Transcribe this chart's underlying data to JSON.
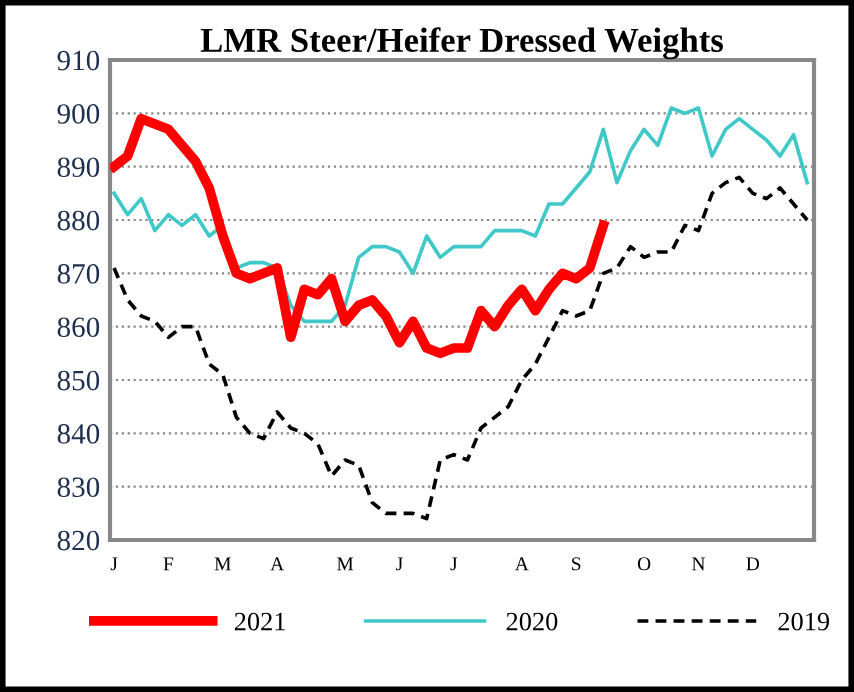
{
  "chart_data": {
    "type": "line",
    "title": "LMR Steer/Heifer Dressed Weights",
    "categories": [
      "J",
      null,
      null,
      null,
      "F",
      null,
      null,
      null,
      "M",
      null,
      null,
      null,
      "A",
      null,
      null,
      null,
      null,
      "M",
      null,
      null,
      null,
      "J",
      null,
      null,
      null,
      "J",
      null,
      null,
      null,
      null,
      "A",
      null,
      null,
      null,
      "S",
      null,
      null,
      null,
      null,
      "O",
      null,
      null,
      null,
      "N",
      null,
      null,
      null,
      "D",
      null,
      null,
      null,
      null
    ],
    "ylim": [
      820,
      910
    ],
    "yticks": [
      820,
      830,
      840,
      850,
      860,
      870,
      880,
      890,
      900,
      910
    ],
    "grid": "y",
    "legend": "bottom",
    "marker": "none",
    "series": [
      {
        "name": "2021",
        "color": "#ff0000",
        "line_style": "solid",
        "values": [
          890,
          892,
          899,
          898,
          897,
          894,
          891,
          886,
          877,
          870,
          869,
          870,
          871,
          858,
          867,
          866,
          869,
          861,
          864,
          865,
          862,
          857,
          861,
          856,
          855,
          856,
          856,
          863,
          860,
          864,
          867,
          863,
          867,
          870,
          869,
          871,
          879,
          null,
          null,
          null,
          null,
          null,
          null,
          null,
          null,
          null,
          null,
          null,
          null,
          null,
          null,
          null
        ]
      },
      {
        "name": "2020",
        "color": "#40c8c8",
        "line_style": "solid",
        "values": [
          885,
          881,
          884,
          878,
          881,
          879,
          881,
          877,
          879,
          871,
          872,
          872,
          871,
          864,
          861,
          861,
          861,
          864,
          873,
          875,
          875,
          874,
          870,
          877,
          873,
          875,
          875,
          875,
          878,
          878,
          878,
          877,
          883,
          883,
          886,
          889,
          897,
          887,
          893,
          897,
          894,
          901,
          900,
          901,
          892,
          897,
          899,
          897,
          895,
          892,
          896,
          887
        ]
      },
      {
        "name": "2019",
        "color": "#000000",
        "line_style": "dashed",
        "values": [
          871,
          865,
          862,
          861,
          858,
          860,
          860,
          853,
          851,
          843,
          840,
          839,
          844,
          841,
          840,
          838,
          832,
          835,
          834,
          827,
          825,
          825,
          825,
          824,
          835,
          836,
          835,
          841,
          843,
          845,
          850,
          853,
          858,
          863,
          862,
          863,
          870,
          871,
          875,
          873,
          874,
          874,
          879,
          878,
          885,
          887,
          888,
          885,
          884,
          886,
          883,
          880
        ]
      }
    ]
  }
}
